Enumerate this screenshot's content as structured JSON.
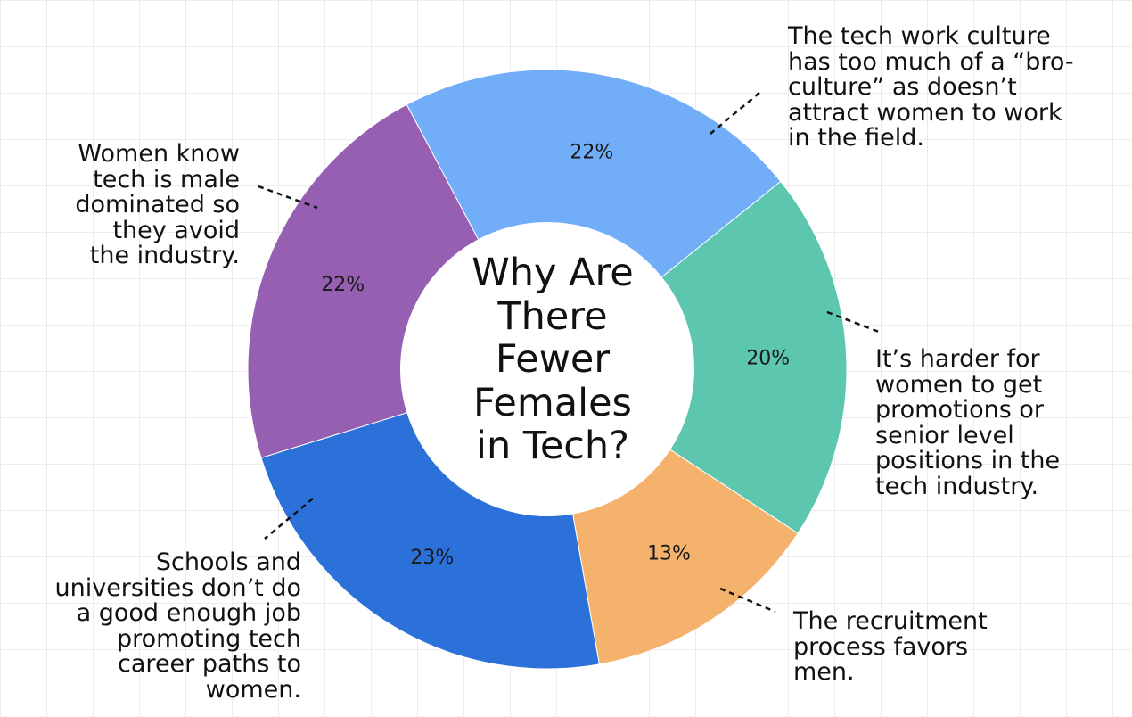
{
  "chart_data": {
    "type": "pie",
    "variant": "donut",
    "title": "Why Are\nThere\nFewer\nFemales\nin Tech?",
    "slices": [
      {
        "label": "The tech work culture\nhas too much of a “bro-\nculture” as doesn’t\nattract women to work\nin the field.",
        "value": 22,
        "value_label": "22%",
        "color": "#72aef8"
      },
      {
        "label": "It’s harder for\nwomen to get\npromotions or\nsenior level\npositions in the\ntech industry.",
        "value": 20,
        "value_label": "20%",
        "color": "#5cc6ae"
      },
      {
        "label": "The recruitment\nprocess favors\nmen.",
        "value": 13,
        "value_label": "13%",
        "color": "#f4b26d"
      },
      {
        "label": "Schools and\nuniversities don’t do\na good enough job\npromoting tech\ncareer paths to\nwomen.",
        "value": 23,
        "value_label": "23%",
        "color": "#2b71d9"
      },
      {
        "label": "Women know\ntech is male\ndominated so\nthey avoid\nthe industry.",
        "value": 22,
        "value_label": "22%",
        "color": "#965fb1"
      }
    ],
    "legend": "callouts"
  }
}
